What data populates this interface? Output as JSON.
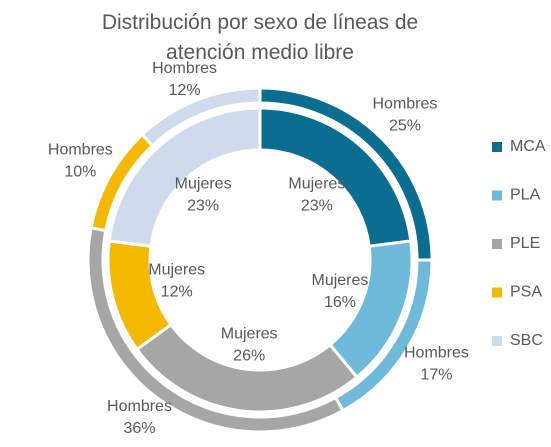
{
  "chart_data": {
    "type": "donut",
    "title": "Distribución por sexo de líneas de atención medio libre",
    "categories": [
      "MCA",
      "PLA",
      "PLE",
      "PSA",
      "SBC"
    ],
    "colors": [
      "#0b6e90",
      "#6fbad8",
      "#a6a6a6",
      "#f5b800",
      "#cfdbec"
    ],
    "series": [
      {
        "name": "Hombres",
        "values": [
          25,
          17,
          36,
          10,
          12
        ],
        "value_labels": [
          "25%",
          "17%",
          "36%",
          "10%",
          "12%"
        ]
      },
      {
        "name": "Mujeres",
        "values": [
          23,
          16,
          26,
          12,
          23
        ],
        "value_labels": [
          "23%",
          "16%",
          "26%",
          "12%",
          "23%"
        ]
      }
    ],
    "legend": "right"
  }
}
